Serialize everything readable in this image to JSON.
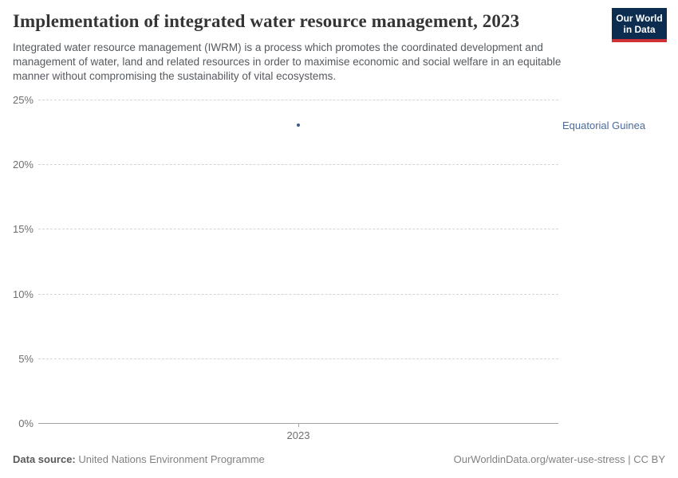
{
  "header": {
    "title": "Implementation of integrated water resource management, 2023",
    "subtitle": "Integrated water resource management (IWRM) is a process which promotes the coordinated development and management of water, land and related resources in order to maximise economic and social welfare in an equitable manner without compromising the sustainability of vital ecosystems.",
    "logo": {
      "line1": "Our World",
      "line2": "in Data",
      "bg_color": "#0d2d50",
      "accent_color": "#cf3035"
    }
  },
  "chart_data": {
    "type": "scatter",
    "title": "Implementation of integrated water resource management, 2023",
    "x": [
      2023
    ],
    "xtick_labels": [
      "2023"
    ],
    "series": [
      {
        "name": "Equatorial Guinea",
        "values": [
          23
        ],
        "point_color": "#3d5a8a",
        "label_color": "#4c6a9c"
      }
    ],
    "ylim": [
      0,
      25
    ],
    "yticks": [
      0,
      5,
      10,
      15,
      20,
      25
    ],
    "ytick_labels": [
      "0%",
      "5%",
      "10%",
      "15%",
      "20%",
      "25%"
    ],
    "ylabel": "",
    "xlabel": "",
    "grid": "horizontal-dashed",
    "legend_position": "inline-right-label"
  },
  "footer": {
    "datasource_label": "Data source:",
    "datasource_value": "United Nations Environment Programme",
    "credit": "OurWorldinData.org/water-use-stress | CC BY"
  }
}
